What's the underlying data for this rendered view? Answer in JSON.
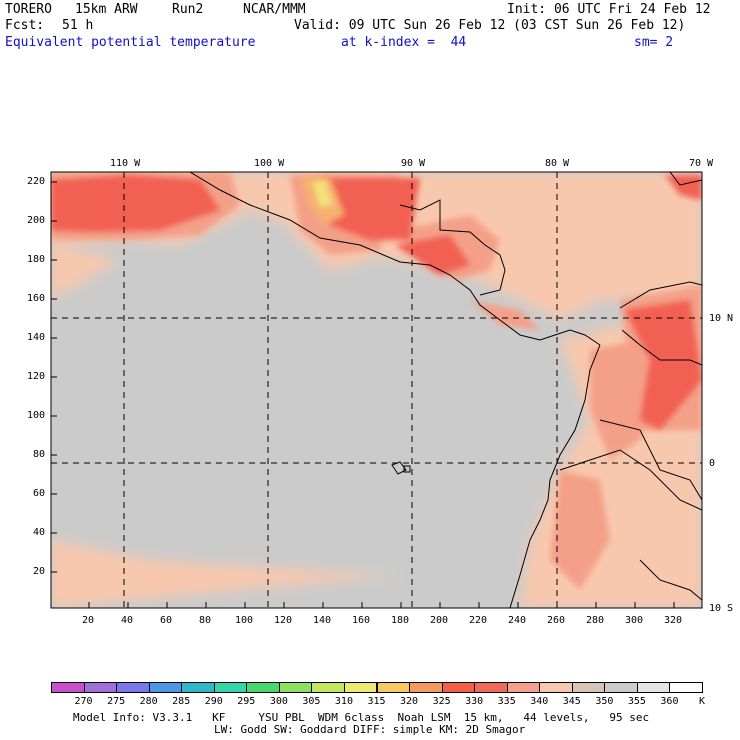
{
  "header": {
    "model": "TORERO",
    "resolution": "15km ARW",
    "run": "Run2",
    "org": "NCAR/MMM",
    "init": "Init: 06 UTC Fri 24 Feb 12",
    "fcst_label": "Fcst:",
    "fcst_value": "51 h",
    "valid": "Valid: 09 UTC Sun 26 Feb 12 (03 CST Sun 26 Feb 12)",
    "field": "Equivalent potential temperature",
    "level": "at k-index =  44",
    "smooth": "sm= 2"
  },
  "map": {
    "lon_labels": [
      "110 W",
      "100 W",
      "90 W",
      "80 W",
      "70 W"
    ],
    "lat_labels": [
      "10 N",
      "0",
      "10 S"
    ],
    "y_ticks": [
      "220",
      "200",
      "180",
      "160",
      "140",
      "120",
      "100",
      "80",
      "60",
      "40",
      "20"
    ],
    "x_ticks": [
      "20",
      "40",
      "60",
      "80",
      "100",
      "120",
      "140",
      "160",
      "180",
      "200",
      "220",
      "240",
      "260",
      "280",
      "300",
      "320"
    ],
    "colors": {
      "ocean": "#cbcbcb",
      "band_340": "#f8c8ae",
      "band_335": "#f4a088",
      "band_330": "#f26052",
      "band_325": "#f48060",
      "band_320": "#f6b070",
      "band_315": "#f2e27a",
      "land_base": "#d7c4b4",
      "coast": "#000000"
    }
  },
  "colorbar": {
    "unit": "K",
    "labels": [
      "270",
      "275",
      "280",
      "285",
      "290",
      "295",
      "300",
      "305",
      "310",
      "315",
      "320",
      "325",
      "330",
      "335",
      "340",
      "345",
      "350",
      "355",
      "360"
    ],
    "colors": [
      "#c850c8",
      "#a070d8",
      "#7878e8",
      "#4c96e6",
      "#30b8c8",
      "#32d6a8",
      "#48d86e",
      "#8ce060",
      "#c2e860",
      "#ece870",
      "#f8c860",
      "#f49a60",
      "#f46046",
      "#f06a5c",
      "#f5a08c",
      "#f8c8ae",
      "#d7c4b4",
      "#cbcbcb",
      "#e4e4e4",
      "#ffffff"
    ]
  },
  "footer": {
    "line1": "Model Info: V3.3.1   KF     YSU PBL  WDM 6class  Noah LSM  15 km,   44 levels,   95 sec",
    "line2": "LW: Godd SW: Goddard DIFF: simple KM: 2D Smagor"
  }
}
